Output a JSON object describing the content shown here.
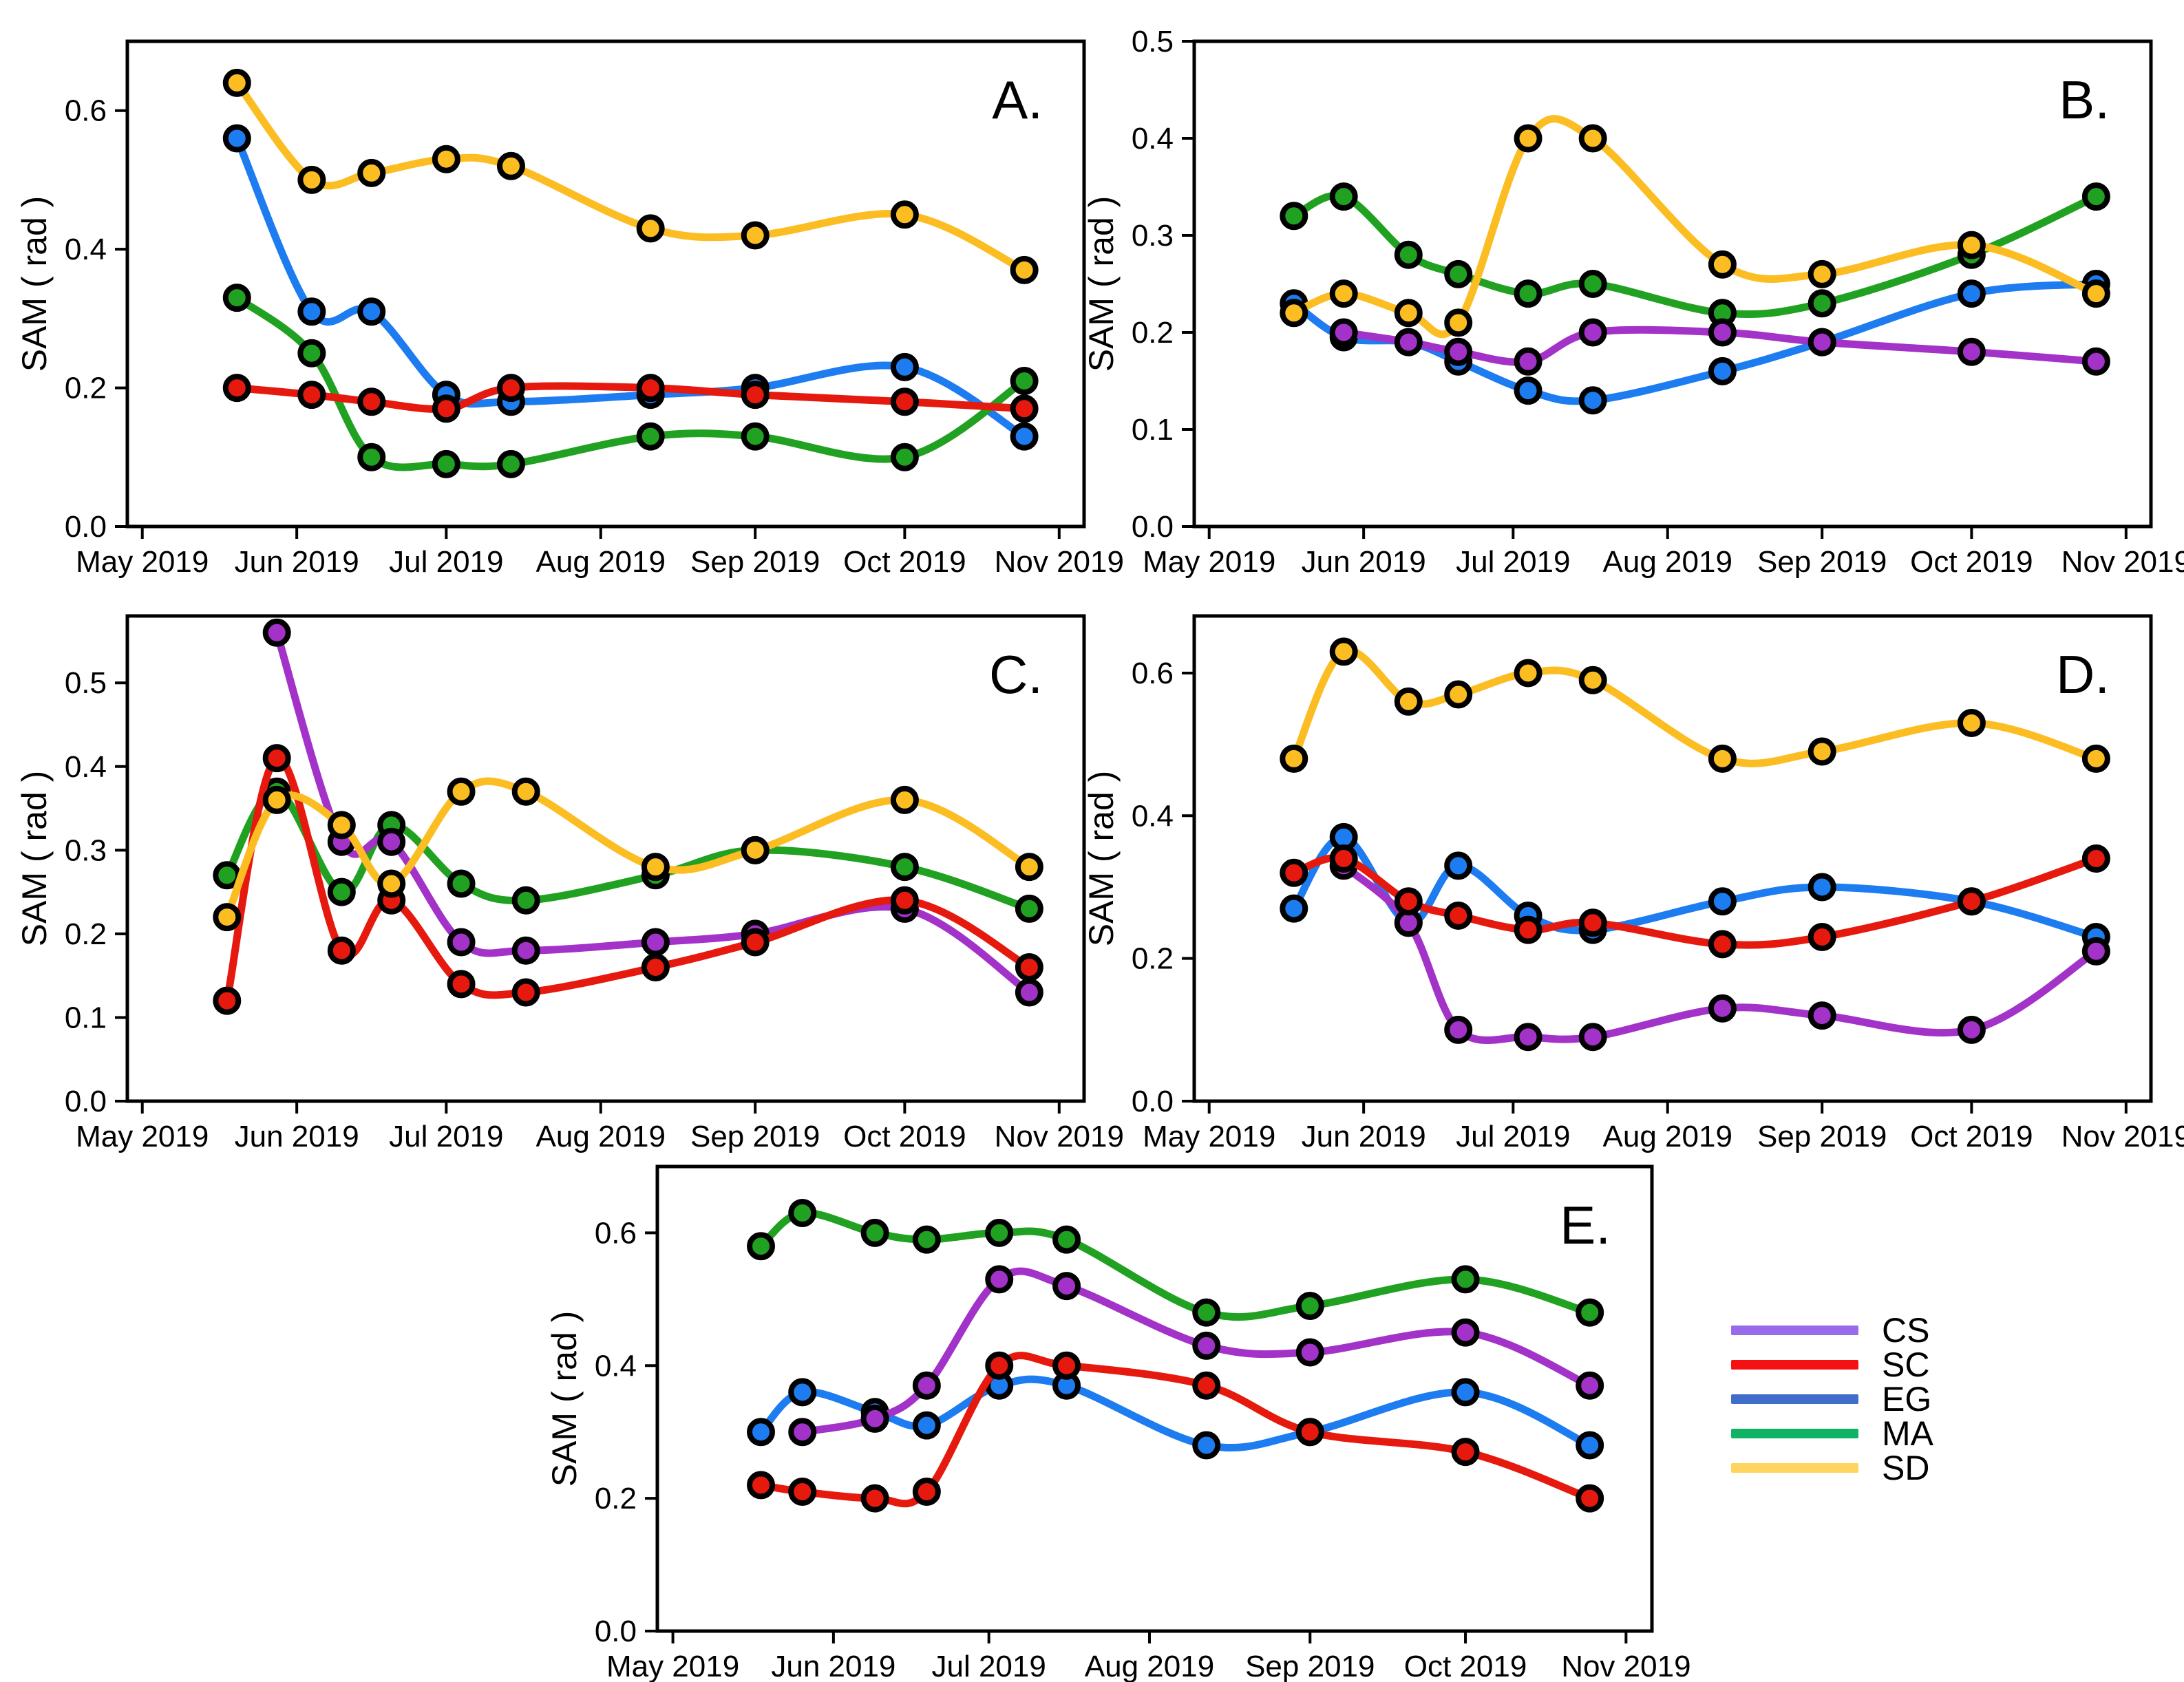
{
  "figure": {
    "ylabel": "SAM ( rad )",
    "x_tick_labels": [
      "May 2019",
      "Jun 2019",
      "Jul 2019",
      "Aug 2019",
      "Sep 2019",
      "Oct 2019",
      "Nov 2019"
    ],
    "x_tick_days": [
      0,
      31,
      61,
      92,
      123,
      153,
      184
    ]
  },
  "legend": {
    "items": [
      {
        "label": "CS",
        "color": "#976BEA"
      },
      {
        "label": "SC",
        "color": "#F31111"
      },
      {
        "label": "EG",
        "color": "#3F6DC9"
      },
      {
        "label": "MA",
        "color": "#0FB364"
      },
      {
        "label": "SD",
        "color": "#FFD55F"
      }
    ]
  },
  "chart_data": [
    {
      "id": "A",
      "panel_label": "A.",
      "type": "line",
      "ylabel": "SAM ( rad )",
      "ylim": [
        0,
        0.7
      ],
      "y_tick_values": [
        0,
        0.2,
        0.4,
        0.6
      ],
      "y_tick_labels": [
        "0.0",
        "0.2",
        "0.4",
        "0.6"
      ],
      "x_dates": [
        "2019-05-20",
        "2019-06-04",
        "2019-06-16",
        "2019-07-01",
        "2019-07-14",
        "2019-08-11",
        "2019-09-01",
        "2019-10-01",
        "2019-10-25"
      ],
      "x_days": [
        19,
        34,
        46,
        61,
        74,
        102,
        123,
        153,
        177
      ],
      "series": [
        {
          "name": "EG",
          "color": "#1D7CF0",
          "values": [
            0.56,
            0.31,
            0.31,
            0.19,
            0.18,
            0.19,
            0.2,
            0.23,
            0.13
          ]
        },
        {
          "name": "MA",
          "color": "#21A121",
          "values": [
            0.33,
            0.25,
            0.1,
            0.09,
            0.09,
            0.13,
            0.13,
            0.1,
            0.21
          ]
        },
        {
          "name": "SC",
          "color": "#E6190E",
          "values": [
            0.2,
            0.19,
            0.18,
            0.17,
            0.2,
            0.2,
            0.19,
            0.18,
            0.17
          ]
        },
        {
          "name": "SD",
          "color": "#FBBD22",
          "values": [
            0.64,
            0.5,
            0.51,
            0.53,
            0.52,
            0.43,
            0.42,
            0.45,
            0.37
          ]
        }
      ]
    },
    {
      "id": "B",
      "panel_label": "B.",
      "type": "line",
      "ylabel": "SAM ( rad )",
      "ylim": [
        0,
        0.5
      ],
      "y_tick_values": [
        0,
        0.1,
        0.2,
        0.3,
        0.4,
        0.5
      ],
      "y_tick_labels": [
        "0.0",
        "0.1",
        "0.2",
        "0.3",
        "0.4",
        "0.5"
      ],
      "x_dates": [
        "2019-05-18",
        "2019-05-28",
        "2019-06-10",
        "2019-06-20",
        "2019-07-04",
        "2019-07-17",
        "2019-08-12",
        "2019-09-01",
        "2019-10-01",
        "2019-10-26"
      ],
      "x_days": [
        17,
        27,
        40,
        50,
        64,
        77,
        103,
        123,
        153,
        178
      ],
      "series": [
        {
          "name": "EG",
          "color": "#1D7CF0",
          "values": [
            0.23,
            0.195,
            0.19,
            0.17,
            0.14,
            0.13,
            0.16,
            0.19,
            0.24,
            0.25
          ]
        },
        {
          "name": "MA",
          "color": "#21A121",
          "values": [
            0.32,
            0.34,
            0.28,
            0.26,
            0.24,
            0.25,
            0.22,
            0.23,
            0.28,
            0.34
          ]
        },
        {
          "name": "CS",
          "color": "#A332C8",
          "values": [
            null,
            0.2,
            0.19,
            0.18,
            0.17,
            0.2,
            0.2,
            0.19,
            0.18,
            0.17
          ]
        },
        {
          "name": "SD",
          "color": "#FBBD22",
          "values": [
            0.22,
            0.24,
            0.22,
            0.21,
            0.4,
            0.4,
            0.27,
            0.26,
            0.29,
            0.24
          ]
        }
      ]
    },
    {
      "id": "C",
      "panel_label": "C.",
      "type": "line",
      "ylabel": "SAM ( rad )",
      "ylim": [
        0,
        0.58
      ],
      "y_tick_values": [
        0,
        0.1,
        0.2,
        0.3,
        0.4,
        0.5
      ],
      "y_tick_labels": [
        "0.0",
        "0.1",
        "0.2",
        "0.3",
        "0.4",
        "0.5"
      ],
      "x_dates": [
        "2019-05-18",
        "2019-05-28",
        "2019-06-10",
        "2019-06-20",
        "2019-07-04",
        "2019-07-17",
        "2019-08-12",
        "2019-09-01",
        "2019-10-01",
        "2019-10-26"
      ],
      "x_days": [
        17,
        27,
        40,
        50,
        64,
        77,
        103,
        123,
        153,
        178
      ],
      "series": [
        {
          "name": "MA",
          "color": "#21A121",
          "values": [
            0.27,
            0.37,
            0.25,
            0.33,
            0.26,
            0.24,
            0.27,
            0.3,
            0.28,
            0.23
          ]
        },
        {
          "name": "CS",
          "color": "#A332C8",
          "values": [
            null,
            0.56,
            0.31,
            0.31,
            0.19,
            0.18,
            0.19,
            0.2,
            0.23,
            0.13
          ]
        },
        {
          "name": "SC",
          "color": "#E6190E",
          "values": [
            0.12,
            0.41,
            0.18,
            0.24,
            0.14,
            0.13,
            0.16,
            0.19,
            0.24,
            0.16
          ]
        },
        {
          "name": "SD",
          "color": "#FBBD22",
          "values": [
            0.22,
            0.36,
            0.33,
            0.26,
            0.37,
            0.37,
            0.28,
            0.3,
            0.36,
            0.28
          ]
        }
      ]
    },
    {
      "id": "D",
      "panel_label": "D.",
      "type": "line",
      "ylabel": "SAM ( rad )",
      "ylim": [
        0,
        0.68
      ],
      "y_tick_values": [
        0,
        0.2,
        0.4,
        0.6
      ],
      "y_tick_labels": [
        "0.0",
        "0.2",
        "0.4",
        "0.6"
      ],
      "x_dates": [
        "2019-05-18",
        "2019-05-28",
        "2019-06-10",
        "2019-06-20",
        "2019-07-04",
        "2019-07-17",
        "2019-08-12",
        "2019-09-01",
        "2019-10-01",
        "2019-10-26"
      ],
      "x_days": [
        17,
        27,
        40,
        50,
        64,
        77,
        103,
        123,
        153,
        178
      ],
      "series": [
        {
          "name": "EG",
          "color": "#1D7CF0",
          "values": [
            0.27,
            0.37,
            0.25,
            0.33,
            0.26,
            0.24,
            0.28,
            0.3,
            0.28,
            0.23
          ]
        },
        {
          "name": "CS",
          "color": "#A332C8",
          "values": [
            null,
            0.33,
            0.25,
            0.1,
            0.09,
            0.09,
            0.13,
            0.12,
            0.1,
            0.21
          ]
        },
        {
          "name": "SC",
          "color": "#E6190E",
          "values": [
            0.32,
            0.34,
            0.28,
            0.26,
            0.24,
            0.25,
            0.22,
            0.23,
            0.28,
            0.34
          ]
        },
        {
          "name": "SD",
          "color": "#FBBD22",
          "values": [
            0.48,
            0.63,
            0.56,
            0.57,
            0.6,
            0.59,
            0.48,
            0.49,
            0.53,
            0.48
          ]
        }
      ]
    },
    {
      "id": "E",
      "panel_label": "E.",
      "type": "line",
      "ylabel": "SAM ( rad )",
      "ylim": [
        0,
        0.7
      ],
      "y_tick_values": [
        0,
        0.2,
        0.4,
        0.6
      ],
      "y_tick_labels": [
        "0.0",
        "0.2",
        "0.4",
        "0.6"
      ],
      "x_dates": [
        "2019-05-18",
        "2019-05-26",
        "2019-06-08",
        "2019-06-19",
        "2019-07-03",
        "2019-07-16",
        "2019-08-12",
        "2019-09-01",
        "2019-10-01",
        "2019-10-25"
      ],
      "x_days": [
        17,
        25,
        39,
        49,
        63,
        76,
        103,
        123,
        153,
        177
      ],
      "series": [
        {
          "name": "EG",
          "color": "#1D7CF0",
          "values": [
            0.3,
            0.36,
            0.33,
            0.31,
            0.37,
            0.37,
            0.28,
            0.3,
            0.36,
            0.28
          ]
        },
        {
          "name": "MA",
          "color": "#21A121",
          "values": [
            0.58,
            0.63,
            0.6,
            0.59,
            0.6,
            0.59,
            0.48,
            0.49,
            0.53,
            0.48
          ]
        },
        {
          "name": "CS",
          "color": "#A332C8",
          "values": [
            null,
            0.3,
            0.32,
            0.37,
            0.53,
            0.52,
            0.43,
            0.42,
            0.45,
            0.37
          ]
        },
        {
          "name": "SC",
          "color": "#E6190E",
          "values": [
            0.22,
            0.21,
            0.2,
            0.21,
            0.4,
            0.4,
            0.37,
            0.3,
            0.27,
            0.2
          ]
        }
      ]
    }
  ]
}
